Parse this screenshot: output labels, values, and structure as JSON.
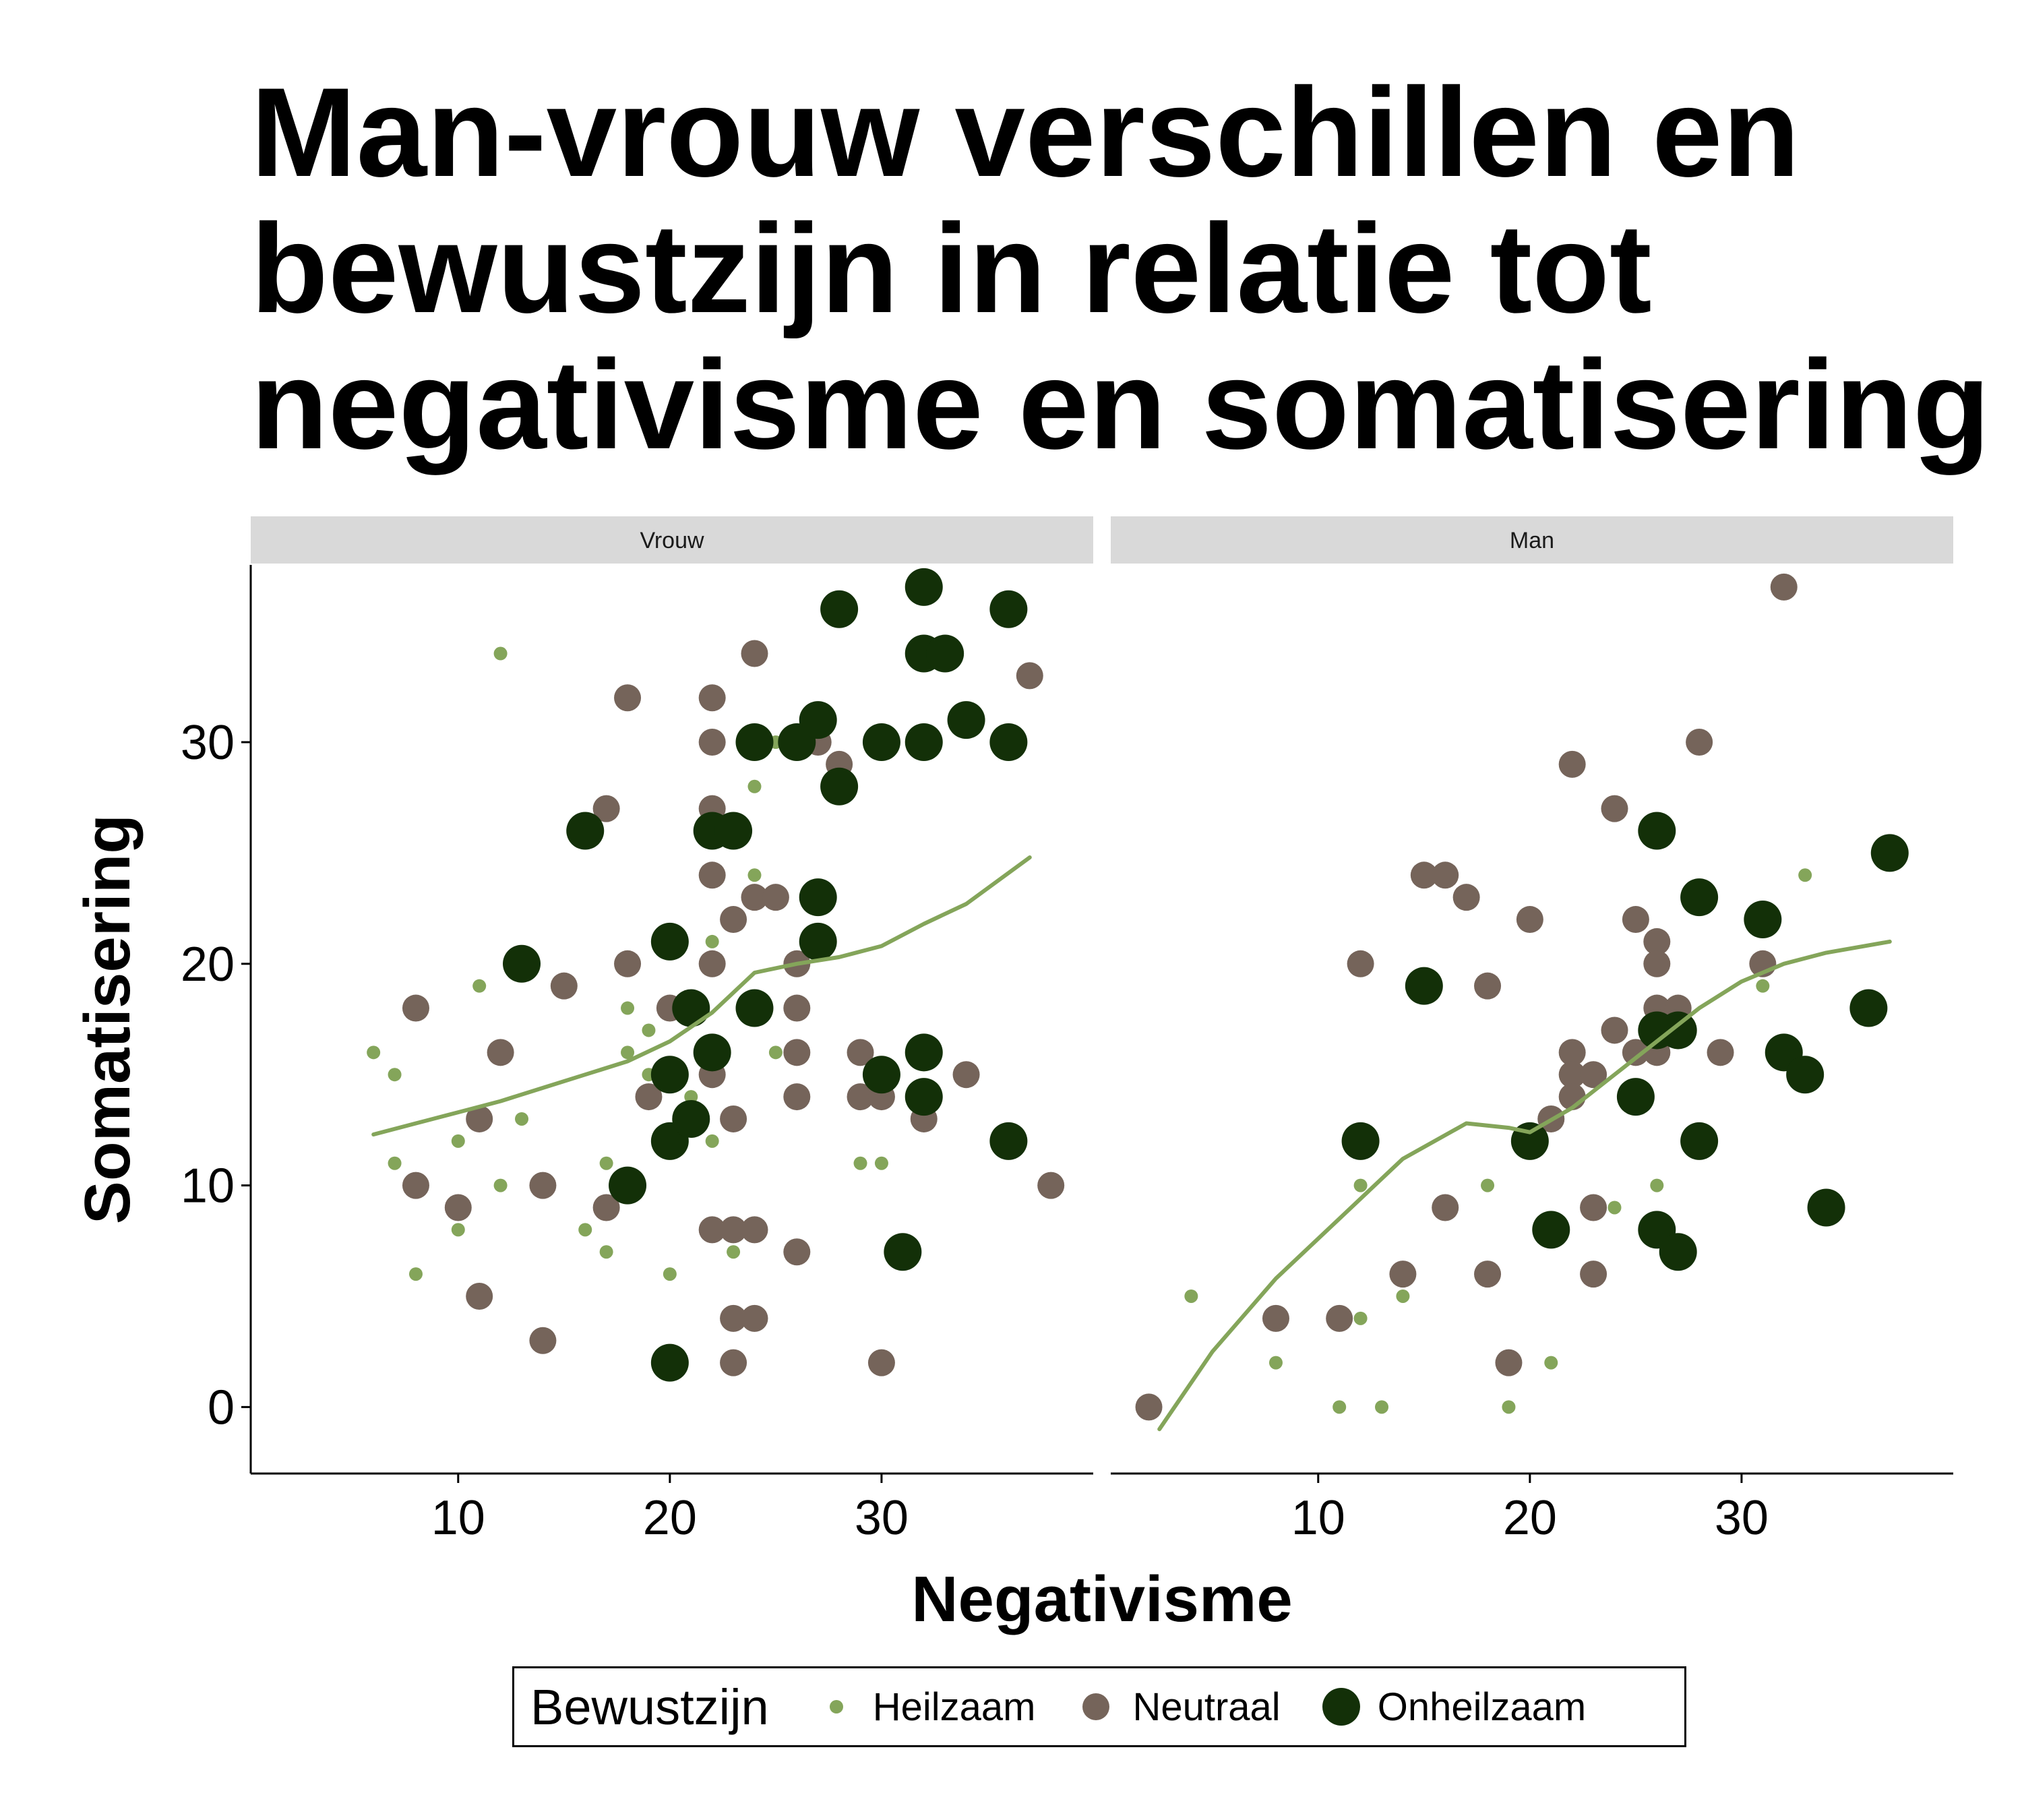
{
  "chart_data": {
    "type": "scatter",
    "title": "Man-vrouw verschillen en bewustzijn in relatie tot negativisme en somatisering",
    "xlabel": "Negativisme",
    "ylabel": "Somatisering",
    "xlim": [
      0.2,
      40
    ],
    "ylim": [
      -3,
      38
    ],
    "x_ticks": [
      10,
      20,
      30
    ],
    "y_ticks": [
      0,
      10,
      20,
      30
    ],
    "grid": false,
    "legend": {
      "title": "Bewustzijn",
      "placement": "bottom",
      "entries": [
        {
          "name": "Heilzaam",
          "color": "#84a55a",
          "size": "small"
        },
        {
          "name": "Neutraal",
          "color": "#75645a",
          "size": "medium"
        },
        {
          "name": "Onheilzaam",
          "color": "#133008",
          "size": "large"
        }
      ]
    },
    "panels": [
      {
        "name": "Vrouw",
        "series": [
          {
            "name": "Heilzaam",
            "points": [
              [
                6,
                16
              ],
              [
                7,
                15
              ],
              [
                7,
                11
              ],
              [
                8,
                6
              ],
              [
                10,
                12
              ],
              [
                10,
                8
              ],
              [
                11,
                19
              ],
              [
                12,
                34
              ],
              [
                12,
                10
              ],
              [
                13,
                13
              ],
              [
                16,
                8
              ],
              [
                17,
                11
              ],
              [
                17,
                7
              ],
              [
                18,
                18
              ],
              [
                18,
                16
              ],
              [
                19,
                17
              ],
              [
                19,
                15
              ],
              [
                20,
                6
              ],
              [
                21,
                14
              ],
              [
                22,
                21
              ],
              [
                22,
                12
              ],
              [
                23,
                7
              ],
              [
                24,
                28
              ],
              [
                24,
                24
              ],
              [
                25,
                16
              ],
              [
                30,
                11
              ],
              [
                29,
                11
              ],
              [
                25,
                30
              ]
            ]
          },
          {
            "name": "Neutraal",
            "points": [
              [
                8,
                18
              ],
              [
                8,
                10
              ],
              [
                10,
                9
              ],
              [
                11,
                13
              ],
              [
                11,
                5
              ],
              [
                12,
                16
              ],
              [
                14,
                10
              ],
              [
                14,
                3
              ],
              [
                15,
                19
              ],
              [
                17,
                27
              ],
              [
                17,
                9
              ],
              [
                18,
                32
              ],
              [
                18,
                20
              ],
              [
                19,
                14
              ],
              [
                20,
                18
              ],
              [
                22,
                32
              ],
              [
                22,
                30
              ],
              [
                22,
                27
              ],
              [
                22,
                24
              ],
              [
                22,
                20
              ],
              [
                22,
                15
              ],
              [
                22,
                8
              ],
              [
                23,
                22
              ],
              [
                23,
                13
              ],
              [
                23,
                8
              ],
              [
                23,
                4
              ],
              [
                23,
                2
              ],
              [
                24,
                34
              ],
              [
                24,
                23
              ],
              [
                24,
                8
              ],
              [
                24,
                4
              ],
              [
                25,
                23
              ],
              [
                26,
                20
              ],
              [
                26,
                18
              ],
              [
                26,
                16
              ],
              [
                26,
                14
              ],
              [
                26,
                7
              ],
              [
                27,
                30
              ],
              [
                28,
                29
              ],
              [
                29,
                16
              ],
              [
                29,
                14
              ],
              [
                30,
                14
              ],
              [
                30,
                2
              ],
              [
                32,
                16
              ],
              [
                32,
                13
              ],
              [
                34,
                15
              ],
              [
                37,
                33
              ],
              [
                38,
                10
              ]
            ]
          },
          {
            "name": "Onheilzaam",
            "points": [
              [
                13,
                20
              ],
              [
                16,
                26
              ],
              [
                18,
                10
              ],
              [
                20,
                21
              ],
              [
                20,
                15
              ],
              [
                20,
                12
              ],
              [
                20,
                2
              ],
              [
                21,
                18
              ],
              [
                21,
                13
              ],
              [
                22,
                26
              ],
              [
                22,
                16
              ],
              [
                23,
                26
              ],
              [
                24,
                30
              ],
              [
                24,
                18
              ],
              [
                26,
                30
              ],
              [
                27,
                31
              ],
              [
                27,
                23
              ],
              [
                27,
                21
              ],
              [
                28,
                36
              ],
              [
                28,
                28
              ],
              [
                30,
                30
              ],
              [
                30,
                15
              ],
              [
                31,
                7
              ],
              [
                32,
                37
              ],
              [
                32,
                34
              ],
              [
                32,
                30
              ],
              [
                32,
                16
              ],
              [
                32,
                14
              ],
              [
                33,
                34
              ],
              [
                34,
                31
              ],
              [
                36,
                36
              ],
              [
                36,
                30
              ],
              [
                36,
                12
              ]
            ]
          }
        ],
        "trend": {
          "x": [
            6,
            8,
            10,
            12,
            14,
            16,
            18,
            20,
            22,
            24,
            26,
            28,
            30,
            32,
            34,
            37
          ],
          "y": [
            12.3,
            12.8,
            13.3,
            13.8,
            14.4,
            15.0,
            15.6,
            16.5,
            17.8,
            19.6,
            20.0,
            20.3,
            20.8,
            21.8,
            22.7,
            24.8
          ]
        }
      },
      {
        "name": "Man",
        "series": [
          {
            "name": "Heilzaam",
            "points": [
              [
                4,
                5
              ],
              [
                8,
                2
              ],
              [
                11,
                0
              ],
              [
                12,
                10
              ],
              [
                12,
                4
              ],
              [
                13,
                0
              ],
              [
                14,
                5
              ],
              [
                18,
                10
              ],
              [
                19,
                0
              ],
              [
                21,
                2
              ],
              [
                24,
                9
              ],
              [
                25,
                14
              ],
              [
                26,
                10
              ],
              [
                31,
                19
              ],
              [
                33,
                24
              ]
            ]
          },
          {
            "name": "Neutraal",
            "points": [
              [
                2,
                0
              ],
              [
                8,
                4
              ],
              [
                11,
                4
              ],
              [
                12,
                20
              ],
              [
                14,
                6
              ],
              [
                15,
                24
              ],
              [
                16,
                24
              ],
              [
                16,
                9
              ],
              [
                17,
                23
              ],
              [
                18,
                19
              ],
              [
                18,
                6
              ],
              [
                19,
                2
              ],
              [
                20,
                22
              ],
              [
                21,
                13
              ],
              [
                22,
                29
              ],
              [
                22,
                16
              ],
              [
                22,
                15
              ],
              [
                22,
                14
              ],
              [
                23,
                15
              ],
              [
                23,
                9
              ],
              [
                23,
                6
              ],
              [
                24,
                27
              ],
              [
                24,
                17
              ],
              [
                25,
                22
              ],
              [
                25,
                16
              ],
              [
                26,
                21
              ],
              [
                26,
                20
              ],
              [
                26,
                18
              ],
              [
                26,
                16
              ],
              [
                27,
                18
              ],
              [
                28,
                30
              ],
              [
                29,
                16
              ],
              [
                31,
                20
              ],
              [
                32,
                37
              ]
            ]
          },
          {
            "name": "Onheilzaam",
            "points": [
              [
                12,
                12
              ],
              [
                15,
                19
              ],
              [
                20,
                12
              ],
              [
                21,
                8
              ],
              [
                25,
                14
              ],
              [
                26,
                26
              ],
              [
                26,
                17
              ],
              [
                26,
                8
              ],
              [
                27,
                17
              ],
              [
                27,
                7
              ],
              [
                28,
                23
              ],
              [
                28,
                12
              ],
              [
                31,
                22
              ],
              [
                32,
                16
              ],
              [
                33,
                15
              ],
              [
                34,
                9
              ],
              [
                36,
                18
              ],
              [
                37,
                25
              ]
            ]
          }
        ],
        "trend": {
          "x": [
            2.5,
            5,
            8,
            11,
            14,
            17,
            19,
            20,
            22,
            24,
            26,
            28,
            30,
            32,
            34,
            37
          ],
          "y": [
            -1.0,
            2.5,
            5.8,
            8.5,
            11.2,
            12.8,
            12.6,
            12.4,
            13.5,
            15.0,
            16.5,
            18.0,
            19.2,
            20.0,
            20.5,
            21.0
          ]
        }
      }
    ]
  }
}
